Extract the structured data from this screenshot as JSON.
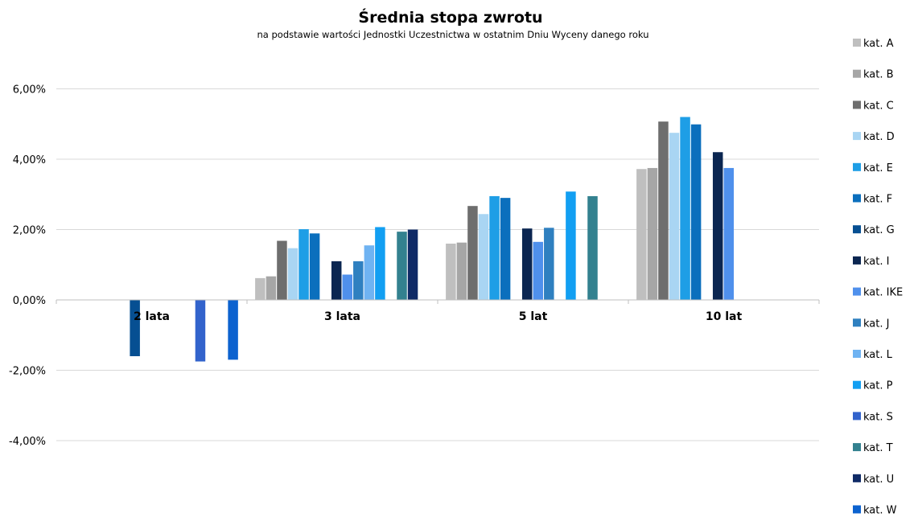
{
  "chart_data": {
    "type": "bar",
    "title": "Średnia stopa zwrotu",
    "subtitle": "na podstawie wartości Jednostki Uczestnictwa w ostatnim Dniu Wyceny danego roku",
    "categories": [
      "2 lata",
      "3 lata",
      "5 lat",
      "10 lat"
    ],
    "ylim": [
      -4.5,
      6.5
    ],
    "yticks": [
      6,
      4,
      2,
      0,
      -2,
      -4
    ],
    "ytick_labels": [
      "6,00%",
      "4,00%",
      "2,00%",
      "0,00%",
      "-2,00%",
      "-4,00%"
    ],
    "grid": true,
    "legend_position": "right",
    "series": [
      {
        "name": "kat. A",
        "color": "#bfbfbf",
        "values": [
          null,
          0.62,
          1.6,
          3.72
        ]
      },
      {
        "name": "kat. B",
        "color": "#a6a6a6",
        "values": [
          null,
          0.67,
          1.63,
          3.75
        ]
      },
      {
        "name": "kat. C",
        "color": "#6e6e6e",
        "values": [
          null,
          1.68,
          2.67,
          5.07
        ]
      },
      {
        "name": "kat. D",
        "color": "#a9d5f3",
        "values": [
          null,
          1.47,
          2.44,
          4.75
        ]
      },
      {
        "name": "kat. E",
        "color": "#1e9ee6",
        "values": [
          null,
          2.01,
          2.95,
          5.2
        ]
      },
      {
        "name": "kat. F",
        "color": "#0b6fbd",
        "values": [
          null,
          1.89,
          2.9,
          4.99
        ]
      },
      {
        "name": "kat. G",
        "color": "#064f92",
        "values": [
          -1.6,
          null,
          null,
          null
        ]
      },
      {
        "name": "kat. I",
        "color": "#0b2651",
        "values": [
          null,
          1.1,
          2.03,
          4.2
        ]
      },
      {
        "name": "kat. IKE",
        "color": "#4f90ec",
        "values": [
          null,
          0.72,
          1.65,
          3.75
        ]
      },
      {
        "name": "kat. J",
        "color": "#2f80c0",
        "values": [
          null,
          1.1,
          2.05,
          null
        ]
      },
      {
        "name": "kat. L",
        "color": "#6fb3f2",
        "values": [
          null,
          1.55,
          null,
          null
        ]
      },
      {
        "name": "kat. P",
        "color": "#129ff2",
        "values": [
          null,
          2.07,
          3.08,
          null
        ]
      },
      {
        "name": "kat. S",
        "color": "#3263cc",
        "values": [
          -1.75,
          null,
          null,
          null
        ]
      },
      {
        "name": "kat. T",
        "color": "#33818f",
        "values": [
          null,
          1.94,
          2.95,
          null
        ]
      },
      {
        "name": "kat. U",
        "color": "#0f2a66",
        "values": [
          null,
          2.0,
          null,
          null
        ]
      },
      {
        "name": "kat. W",
        "color": "#0c62cf",
        "values": [
          -1.7,
          null,
          null,
          null
        ]
      }
    ]
  }
}
